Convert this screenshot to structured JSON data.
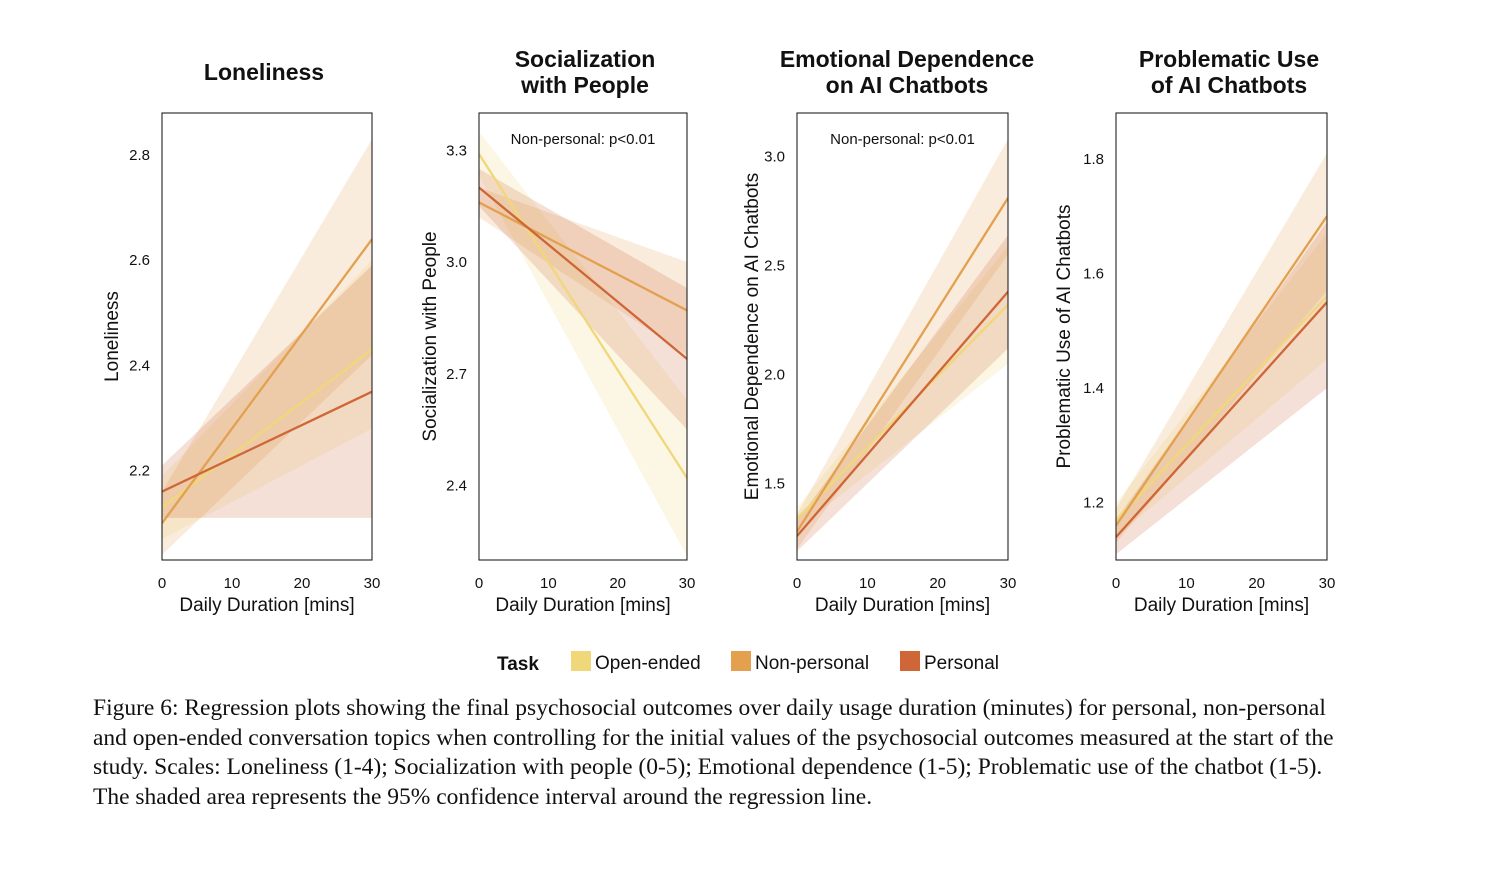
{
  "chart_data": [
    {
      "type": "line",
      "title": [
        "Loneliness"
      ],
      "xlabel": "Daily Duration [mins]",
      "ylabel": "Loneliness",
      "xlim": [
        0,
        30
      ],
      "ylim": [
        2.03,
        2.88
      ],
      "xticks": [
        0,
        10,
        20,
        30
      ],
      "yticks": [
        2.2,
        2.4,
        2.6,
        2.8
      ],
      "ytick_labels": [
        "2.2",
        "2.4",
        "2.6",
        "2.8"
      ],
      "annotation": "",
      "series": [
        {
          "name": "Open-ended",
          "x": [
            0,
            30
          ],
          "y": [
            2.13,
            2.43
          ],
          "ci_lower": [
            2.07,
            2.28
          ],
          "ci_upper": [
            2.19,
            2.6
          ]
        },
        {
          "name": "Non-personal",
          "x": [
            0,
            30
          ],
          "y": [
            2.1,
            2.64
          ],
          "ci_lower": [
            2.04,
            2.42
          ],
          "ci_upper": [
            2.16,
            2.83
          ]
        },
        {
          "name": "Personal",
          "x": [
            0,
            30
          ],
          "y": [
            2.16,
            2.35
          ],
          "ci_lower": [
            2.11,
            2.11
          ],
          "ci_upper": [
            2.21,
            2.59
          ]
        }
      ]
    },
    {
      "type": "line",
      "title": [
        "Socialization",
        "with People"
      ],
      "xlabel": "Daily Duration [mins]",
      "ylabel": "Socialization with People",
      "xlim": [
        0,
        30
      ],
      "ylim": [
        2.2,
        3.4
      ],
      "xticks": [
        0,
        10,
        20,
        30
      ],
      "yticks": [
        2.4,
        2.7,
        3.0,
        3.3
      ],
      "ytick_labels": [
        "2.4",
        "2.7",
        "3.0",
        "3.3"
      ],
      "annotation": "Non-personal: p<0.01",
      "series": [
        {
          "name": "Open-ended",
          "x": [
            0,
            30
          ],
          "y": [
            3.29,
            2.42
          ],
          "ci_lower": [
            3.23,
            2.21
          ],
          "ci_upper": [
            3.35,
            2.63
          ]
        },
        {
          "name": "Non-personal",
          "x": [
            0,
            30
          ],
          "y": [
            3.16,
            2.87
          ],
          "ci_lower": [
            3.12,
            2.75
          ],
          "ci_upper": [
            3.2,
            3.0
          ]
        },
        {
          "name": "Personal",
          "x": [
            0,
            30
          ],
          "y": [
            3.2,
            2.74
          ],
          "ci_lower": [
            3.15,
            2.55
          ],
          "ci_upper": [
            3.25,
            2.93
          ]
        }
      ]
    },
    {
      "type": "line",
      "title": [
        "Emotional Dependence",
        "on AI Chatbots"
      ],
      "xlabel": "Daily Duration [mins]",
      "ylabel": "Emotional Dependence on AI Chatbots",
      "xlim": [
        0,
        30
      ],
      "ylim": [
        1.15,
        3.2
      ],
      "xticks": [
        0,
        10,
        20,
        30
      ],
      "yticks": [
        1.5,
        2.0,
        2.5,
        3.0
      ],
      "ytick_labels": [
        "1.5",
        "2.0",
        "2.5",
        "3.0"
      ],
      "annotation": "Non-personal: p<0.01",
      "series": [
        {
          "name": "Open-ended",
          "x": [
            0,
            30
          ],
          "y": [
            1.34,
            2.32
          ],
          "ci_lower": [
            1.29,
            2.05
          ],
          "ci_upper": [
            1.39,
            2.59
          ]
        },
        {
          "name": "Non-personal",
          "x": [
            0,
            30
          ],
          "y": [
            1.28,
            2.81
          ],
          "ci_lower": [
            1.2,
            2.55
          ],
          "ci_upper": [
            1.36,
            3.08
          ]
        },
        {
          "name": "Personal",
          "x": [
            0,
            30
          ],
          "y": [
            1.26,
            2.38
          ],
          "ci_lower": [
            1.19,
            2.12
          ],
          "ci_upper": [
            1.33,
            2.64
          ]
        }
      ]
    },
    {
      "type": "line",
      "title": [
        "Problematic Use",
        "of AI Chatbots"
      ],
      "xlabel": "Daily Duration [mins]",
      "ylabel": "Problematic Use of AI Chatbots",
      "xlim": [
        0,
        30
      ],
      "ylim": [
        1.1,
        1.88
      ],
      "xticks": [
        0,
        10,
        20,
        30
      ],
      "yticks": [
        1.2,
        1.4,
        1.6,
        1.8
      ],
      "ytick_labels": [
        "1.2",
        "1.4",
        "1.6",
        "1.8"
      ],
      "annotation": "",
      "series": [
        {
          "name": "Open-ended",
          "x": [
            0,
            30
          ],
          "y": [
            1.17,
            1.56
          ],
          "ci_lower": [
            1.14,
            1.45
          ],
          "ci_upper": [
            1.2,
            1.67
          ]
        },
        {
          "name": "Non-personal",
          "x": [
            0,
            30
          ],
          "y": [
            1.16,
            1.7
          ],
          "ci_lower": [
            1.13,
            1.57
          ],
          "ci_upper": [
            1.19,
            1.81
          ]
        },
        {
          "name": "Personal",
          "x": [
            0,
            30
          ],
          "y": [
            1.14,
            1.55
          ],
          "ci_lower": [
            1.11,
            1.4
          ],
          "ci_upper": [
            1.17,
            1.69
          ]
        }
      ]
    }
  ],
  "legend": {
    "title": "Task",
    "items": [
      {
        "label": "Open-ended",
        "color": "#f0d77a"
      },
      {
        "label": "Non-personal",
        "color": "#e3a04f"
      },
      {
        "label": "Personal",
        "color": "#cf6637"
      }
    ]
  },
  "caption": "Figure 6: Regression plots showing the final psychosocial outcomes over daily usage duration (minutes) for personal, non-personal and open-ended conversation topics when controlling for the initial values of the psychosocial outcomes measured at the start of the study. Scales: Loneliness (1-4); Socialization with people (0-5); Emotional dependence (1-5); Problematic use of the chatbot (1-5). The shaded area represents the 95% confidence interval around the regression line."
}
